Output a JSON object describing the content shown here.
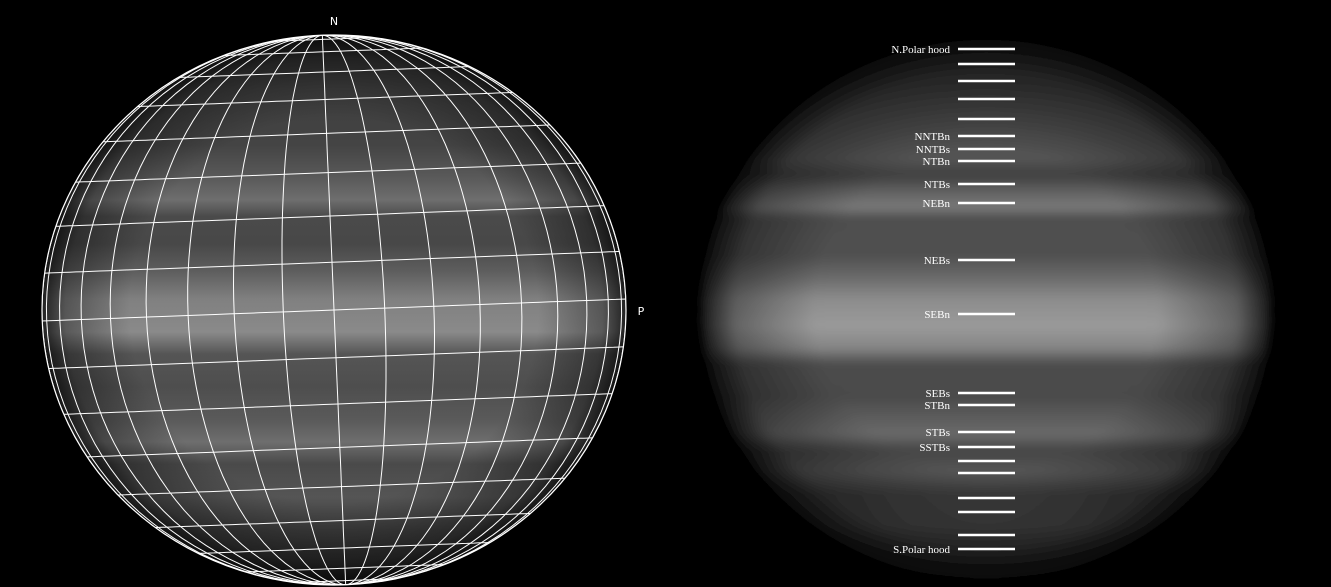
{
  "left_panel": {
    "north_marker": "N",
    "preceding_marker": "P"
  },
  "right_panel": {
    "belt_labels": [
      "N.Polar hood",
      "NNTBn",
      "NNTBs",
      "NTBn",
      "NTBs",
      "NEBn",
      "NEBs",
      "SEBn",
      "SEBs",
      "STBn",
      "STBs",
      "SSTBs",
      "S.Polar hood"
    ]
  },
  "colors": {
    "background": "#000000",
    "grid": "#ffffff",
    "marker": "#ffffff"
  }
}
